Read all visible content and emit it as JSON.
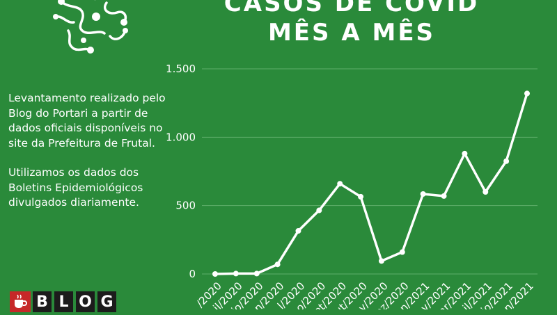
{
  "header": {
    "title_line1": "CASOS DE COVID",
    "title_line2": "MÊS A MÊS"
  },
  "description": {
    "paragraph1": "Levantamento realizado pelo Blog do Portari a partir de dados oficiais disponíveis no site da Prefeitura de Frutal.",
    "paragraph2": "Utilizamos os dados dos Boletins Epidemiológicos divulgados diariamente."
  },
  "logo": {
    "letters": [
      "B",
      "L",
      "O",
      "G"
    ]
  },
  "colors": {
    "background": "#2a8a3a",
    "line": "#ffffff",
    "grid": "#5fae6a",
    "logo_red": "#c62828"
  },
  "chart_data": {
    "type": "line",
    "title": "",
    "xlabel": "",
    "ylabel": "",
    "ylim": [
      0,
      1500
    ],
    "y_ticks": [
      0,
      500,
      1000,
      1500
    ],
    "y_tick_labels": [
      "0",
      "500",
      "1.000",
      "1.500"
    ],
    "categories": [
      "/2020",
      "il/2020",
      "io/2020",
      "n/2020",
      "l/2020",
      "o/2020",
      "et/2020",
      "ut/2020",
      "ov/2020",
      "ez/2020",
      "n/2021",
      "v/2021",
      "ar/2021",
      "il/2021",
      "io/2021",
      "n/2021"
    ],
    "values": [
      0,
      3,
      3,
      70,
      315,
      465,
      660,
      565,
      95,
      160,
      585,
      570,
      880,
      600,
      825,
      1320
    ],
    "grid": true,
    "legend": "none"
  }
}
